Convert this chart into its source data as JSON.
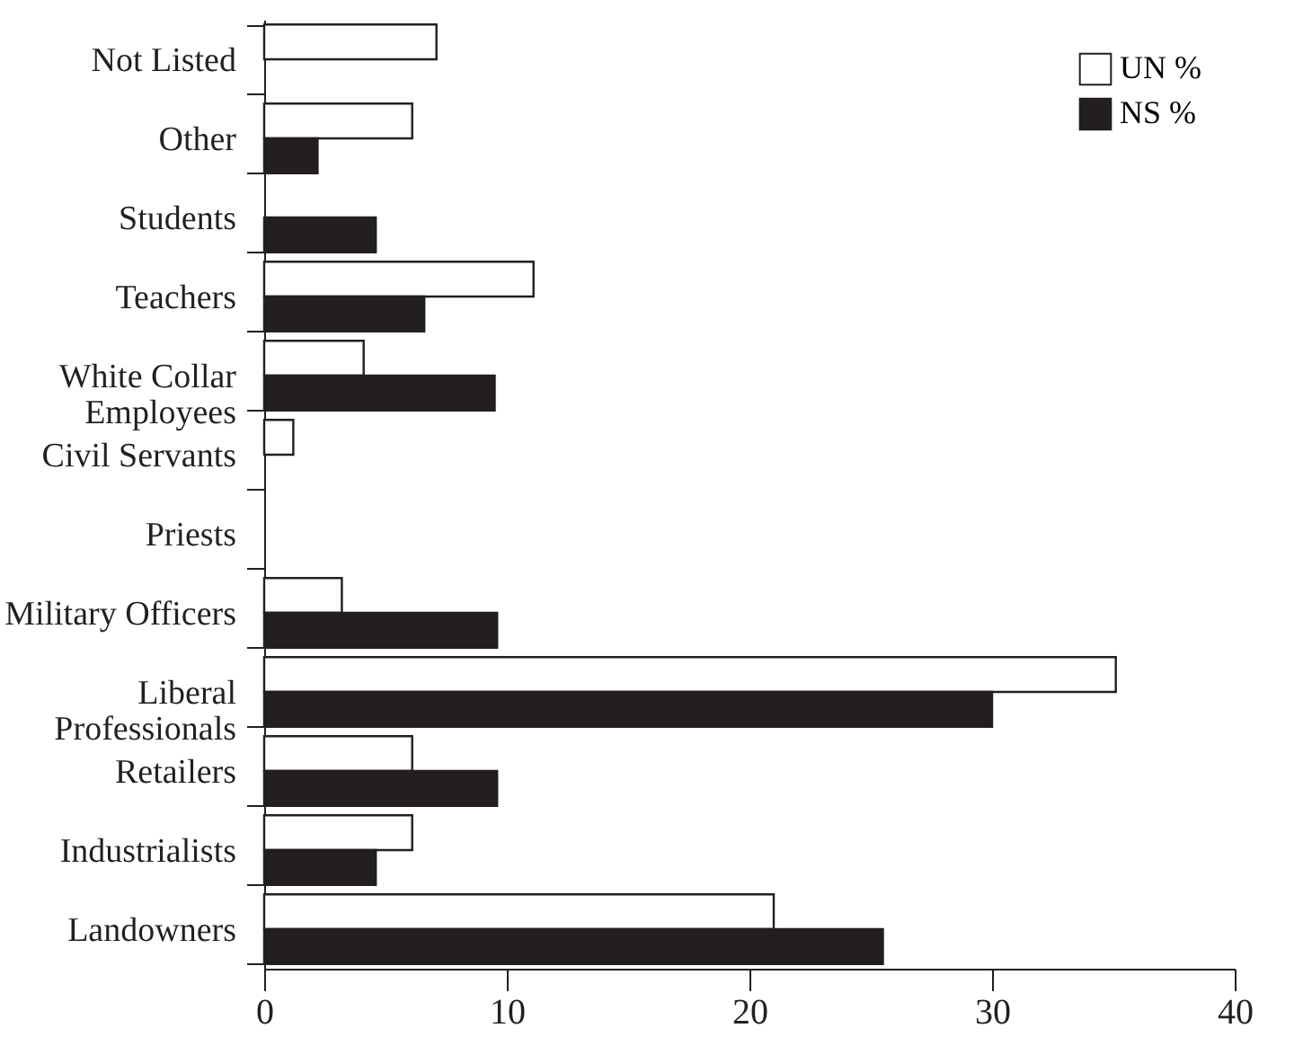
{
  "chart_data": {
    "type": "bar",
    "orientation": "horizontal",
    "categories": [
      "Not Listed",
      "Other",
      "Students",
      "Teachers",
      "White Collar Employees",
      "Civil Servants",
      "Priests",
      "Military Officers",
      "Liberal Professionals",
      "Retailers",
      "Industrialists",
      "Landowners"
    ],
    "series": [
      {
        "name": "UN %",
        "color": "#ffffff",
        "values": [
          7.1,
          6.1,
          null,
          11.1,
          4.1,
          1.2,
          null,
          3.2,
          35.1,
          6.1,
          6.1,
          21.0
        ]
      },
      {
        "name": "NS %",
        "color": "#231f20",
        "values": [
          null,
          2.2,
          4.6,
          6.6,
          9.5,
          null,
          null,
          9.6,
          30.0,
          9.6,
          4.6,
          25.5
        ]
      }
    ],
    "xlim": [
      0,
      40
    ],
    "xticks": [
      0,
      10,
      20,
      30,
      40
    ],
    "grid": false,
    "legend": "top right"
  }
}
